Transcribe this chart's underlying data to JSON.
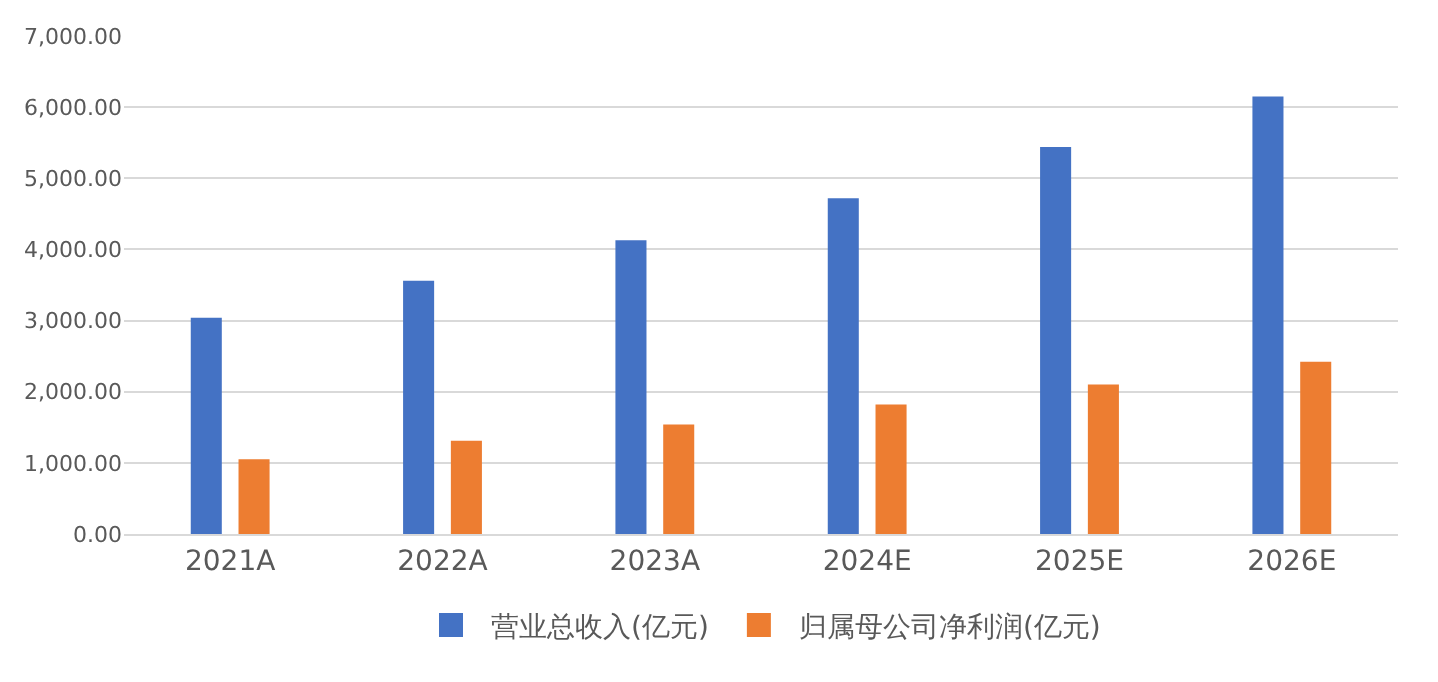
{
  "chart_data": {
    "type": "bar",
    "categories": [
      "2021A",
      "2022A",
      "2023A",
      "2024E",
      "2025E",
      "2026E"
    ],
    "series": [
      {
        "name": "营业总收入(亿元)",
        "color": "#4472c4",
        "values": [
          3040,
          3560,
          4130,
          4720,
          5440,
          6150
        ]
      },
      {
        "name": "归属母公司净利润(亿元)",
        "color": "#ed7d31",
        "values": [
          1050,
          1310,
          1540,
          1820,
          2100,
          2420
        ]
      }
    ],
    "ylim": [
      0,
      7000
    ],
    "yticks": [
      {
        "value": 0,
        "label": "0.00"
      },
      {
        "value": 1000,
        "label": "1,000.00"
      },
      {
        "value": 2000,
        "label": "2,000.00"
      },
      {
        "value": 3000,
        "label": "3,000.00"
      },
      {
        "value": 4000,
        "label": "4,000.00"
      },
      {
        "value": 5000,
        "label": "5,000.00"
      },
      {
        "value": 6000,
        "label": "6,000.00"
      },
      {
        "value": 7000,
        "label": "7,000.00"
      }
    ],
    "grid": "y",
    "legend": "bottom"
  }
}
